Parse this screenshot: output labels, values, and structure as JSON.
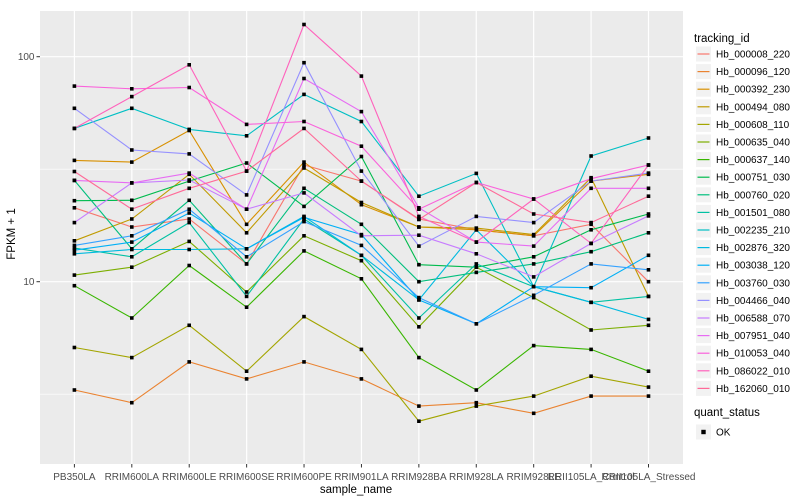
{
  "chart_data": {
    "type": "line",
    "title": "",
    "xlabel": "sample_name",
    "ylabel": "FPKM + 1",
    "y_scale": "log10",
    "ylim": [
      1.65,
      160
    ],
    "y_ticks": [
      100,
      10
    ],
    "y_tick_labels": [
      "100",
      "10"
    ],
    "y_minor_gridlines": [
      31.62,
      3.162
    ],
    "grid": "on",
    "panel_background": "#EBEBEB",
    "gridline_color": "#FFFFFF",
    "point_shape": "filled-square",
    "point_color": "#000000",
    "legend_position": "right",
    "categories": [
      "PB350LA",
      "RRIM600LA",
      "RRIM600LE",
      "RRIM600SE",
      "RRIM600PE",
      "RRIM901LA",
      "RRIM928BA",
      "RRIM928LA",
      "RRIM928LE",
      "RRII105LA_Control",
      "RRII105LA_Stressed"
    ],
    "series": [
      {
        "name": "Hb_000008_220",
        "color": "#F8766D",
        "values": [
          21.3,
          17.5,
          19.0,
          12.0,
          33.0,
          28.0,
          19.0,
          17.0,
          16.0,
          18.0,
          10.0
        ]
      },
      {
        "name": "Hb_000096_120",
        "color": "#EA8331",
        "values": [
          3.3,
          2.9,
          4.4,
          3.7,
          4.4,
          3.7,
          2.8,
          2.9,
          2.6,
          3.1,
          3.1
        ]
      },
      {
        "name": "Hb_000392_230",
        "color": "#D89000",
        "values": [
          34.6,
          34.0,
          47.0,
          18.0,
          34.0,
          22.0,
          17.5,
          17.0,
          16.0,
          28.0,
          30.0
        ]
      },
      {
        "name": "Hb_000494_080",
        "color": "#C09B00",
        "values": [
          15.2,
          19.0,
          30.0,
          16.5,
          32.0,
          22.5,
          17.5,
          17.3,
          16.2,
          29.0,
          8.6
        ]
      },
      {
        "name": "Hb_000608_110",
        "color": "#A3A500",
        "values": [
          5.1,
          4.6,
          6.4,
          4.0,
          7.0,
          5.0,
          2.4,
          2.8,
          3.1,
          3.8,
          3.4
        ]
      },
      {
        "name": "Hb_000635_040",
        "color": "#7CAE00",
        "values": [
          10.7,
          11.6,
          15.1,
          9.0,
          16.0,
          12.4,
          6.3,
          11.6,
          8.5,
          6.1,
          6.4
        ]
      },
      {
        "name": "Hb_000637_140",
        "color": "#39B600",
        "values": [
          9.6,
          6.9,
          11.8,
          7.7,
          13.7,
          10.3,
          4.6,
          3.3,
          5.2,
          5.0,
          4.0
        ]
      },
      {
        "name": "Hb_000751_030",
        "color": "#00BB4E",
        "values": [
          22.9,
          23.0,
          28.0,
          33.7,
          21.6,
          36.0,
          11.9,
          11.6,
          12.9,
          17.0,
          20.0
        ]
      },
      {
        "name": "Hb_000760_020",
        "color": "#00BF7D",
        "values": [
          28.2,
          14.0,
          23.0,
          12.0,
          26.0,
          18.0,
          10.0,
          11.0,
          12.0,
          13.6,
          16.5
        ]
      },
      {
        "name": "Hb_001501_080",
        "color": "#00C1A3",
        "values": [
          14.1,
          12.9,
          18.3,
          8.6,
          19.0,
          13.1,
          6.9,
          12.0,
          9.5,
          8.1,
          8.6
        ]
      },
      {
        "name": "Hb_002235_210",
        "color": "#00BFC4",
        "values": [
          48.0,
          59.0,
          47.5,
          44.5,
          68.0,
          51.5,
          24.0,
          30.3,
          9.5,
          36.2,
          43.5
        ]
      },
      {
        "name": "Hb_002876_320",
        "color": "#00BAE0",
        "values": [
          13.3,
          13.9,
          13.9,
          14.0,
          19.5,
          13.1,
          8.3,
          17.0,
          9.5,
          8.1,
          6.8
        ]
      },
      {
        "name": "Hb_003038_120",
        "color": "#00B0F6",
        "values": [
          13.8,
          15.0,
          20.2,
          14.0,
          19.3,
          16.2,
          8.3,
          6.5,
          9.5,
          9.4,
          13.1
        ]
      },
      {
        "name": "Hb_003760_030",
        "color": "#35A2FF",
        "values": [
          14.5,
          16.0,
          21.0,
          12.9,
          18.5,
          14.5,
          8.5,
          6.5,
          8.7,
          12.0,
          11.3
        ]
      },
      {
        "name": "Hb_004466_040",
        "color": "#9590FF",
        "values": [
          59.0,
          38.5,
          37.0,
          24.3,
          94.0,
          31.0,
          14.4,
          19.5,
          18.3,
          28.0,
          30.4
        ]
      },
      {
        "name": "Hb_006588_070",
        "color": "#C77CFF",
        "values": [
          18.3,
          27.5,
          28.3,
          21.0,
          24.8,
          16.0,
          16.1,
          13.3,
          10.5,
          14.8,
          19.6
        ]
      },
      {
        "name": "Hb_007951_040",
        "color": "#E76BF3",
        "values": [
          28.2,
          27.5,
          30.4,
          21.0,
          80.0,
          57.0,
          21.3,
          15.0,
          14.4,
          26.0,
          26.0
        ]
      },
      {
        "name": "Hb_010053_040",
        "color": "#FA62DB",
        "values": [
          74.0,
          72.0,
          73.0,
          50.0,
          51.5,
          40.0,
          21.0,
          27.6,
          23.3,
          28.7,
          33.0
        ]
      },
      {
        "name": "Hb_086022_010",
        "color": "#FF62BC",
        "values": [
          48.0,
          66.5,
          92.0,
          31.0,
          139.0,
          82.0,
          19.5,
          15.0,
          23.3,
          14.8,
          33.0
        ]
      },
      {
        "name": "Hb_162060_010",
        "color": "#FF6A98",
        "values": [
          30.9,
          21.0,
          26.0,
          31.0,
          48.0,
          28.0,
          18.9,
          27.6,
          20.0,
          18.3,
          24.0
        ]
      }
    ],
    "legend": {
      "color_title": "tracking_id",
      "shape_title": "quant_status",
      "shape_entries": [
        {
          "label": "OK",
          "shape": "filled-square",
          "color": "#000000"
        }
      ]
    }
  }
}
